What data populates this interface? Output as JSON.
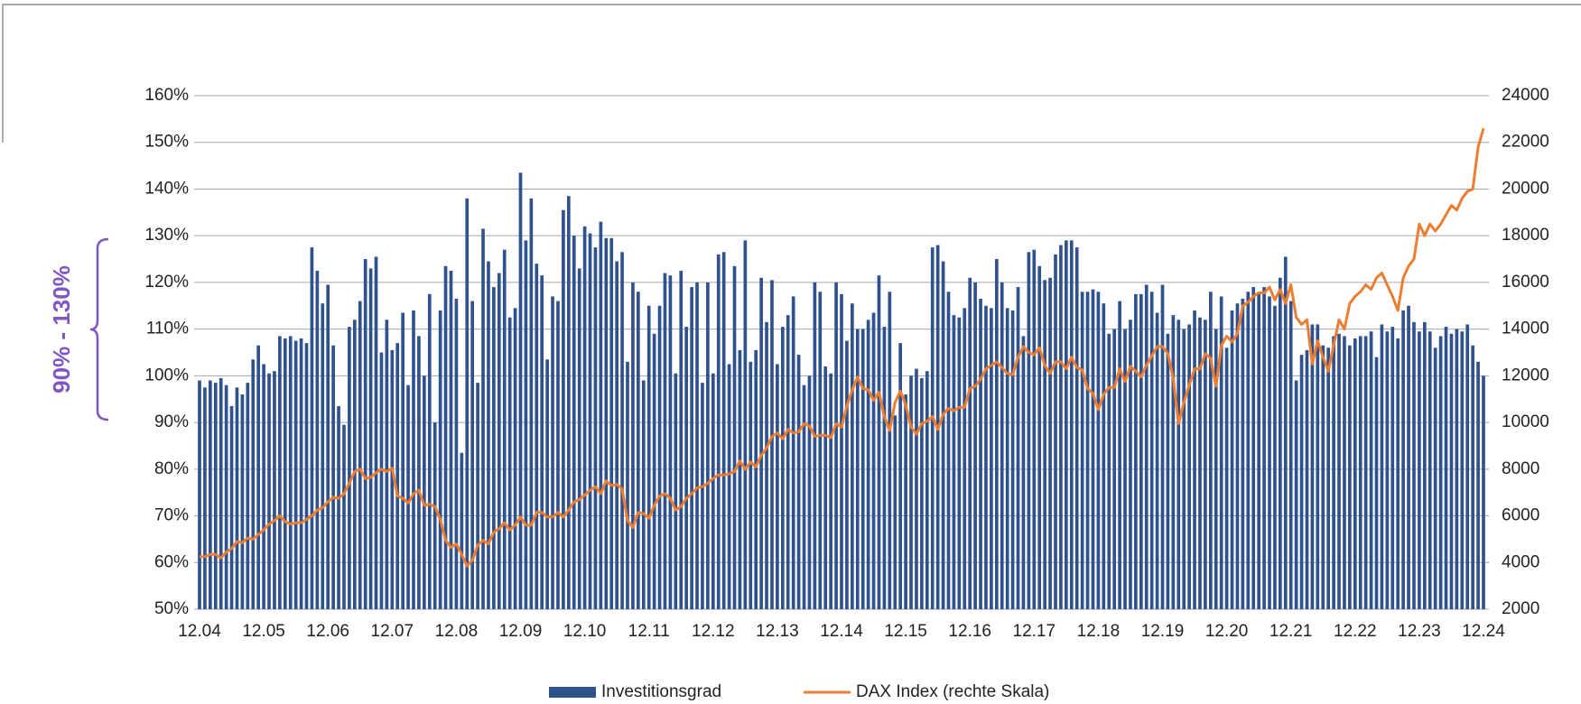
{
  "chart_data": {
    "type": "bar_line",
    "annotation": "90% - 130%",
    "categories": [
      "12.04",
      null,
      null,
      null,
      null,
      null,
      null,
      null,
      null,
      null,
      null,
      null,
      "12.05",
      null,
      null,
      null,
      null,
      null,
      null,
      null,
      null,
      null,
      null,
      null,
      "12.06",
      null,
      null,
      null,
      null,
      null,
      null,
      null,
      null,
      null,
      null,
      null,
      "12.07",
      null,
      null,
      null,
      null,
      null,
      null,
      null,
      null,
      null,
      null,
      null,
      "12.08",
      null,
      null,
      null,
      null,
      null,
      null,
      null,
      null,
      null,
      null,
      null,
      "12.09",
      null,
      null,
      null,
      null,
      null,
      null,
      null,
      null,
      null,
      null,
      null,
      "12.10",
      null,
      null,
      null,
      null,
      null,
      null,
      null,
      null,
      null,
      null,
      null,
      "12.11",
      null,
      null,
      null,
      null,
      null,
      null,
      null,
      null,
      null,
      null,
      null,
      "12.12",
      null,
      null,
      null,
      null,
      null,
      null,
      null,
      null,
      null,
      null,
      null,
      "12.13",
      null,
      null,
      null,
      null,
      null,
      null,
      null,
      null,
      null,
      null,
      null,
      "12.14",
      null,
      null,
      null,
      null,
      null,
      null,
      null,
      null,
      null,
      null,
      null,
      "12.15",
      null,
      null,
      null,
      null,
      null,
      null,
      null,
      null,
      null,
      null,
      null,
      "12.16",
      null,
      null,
      null,
      null,
      null,
      null,
      null,
      null,
      null,
      null,
      null,
      "12.17",
      null,
      null,
      null,
      null,
      null,
      null,
      null,
      null,
      null,
      null,
      null,
      "12.18",
      null,
      null,
      null,
      null,
      null,
      null,
      null,
      null,
      null,
      null,
      null,
      "12.19",
      null,
      null,
      null,
      null,
      null,
      null,
      null,
      null,
      null,
      null,
      null,
      "12.20",
      null,
      null,
      null,
      null,
      null,
      null,
      null,
      null,
      null,
      null,
      null,
      "12.21",
      null,
      null,
      null,
      null,
      null,
      null,
      null,
      null,
      null,
      null,
      null,
      "12.22",
      null,
      null,
      null,
      null,
      null,
      null,
      null,
      null,
      null,
      null,
      null,
      "12.23",
      null,
      null,
      null,
      null,
      null,
      null,
      null,
      null,
      null,
      null,
      null,
      "12.24"
    ],
    "series": [
      {
        "name": "Investitionsgrad",
        "type": "bar",
        "color": "#2f528f",
        "axis": "y",
        "values": [
          99,
          97.5,
          99,
          98.5,
          99.5,
          98,
          93.5,
          97.5,
          96,
          98.5,
          103.5,
          106.5,
          102.5,
          100.5,
          101,
          108.5,
          108,
          108.5,
          107.5,
          108,
          107,
          127.5,
          122.5,
          115.5,
          119.5,
          106.5,
          93.5,
          89.5,
          110.5,
          112,
          116,
          125,
          123,
          125.5,
          105,
          112,
          105.5,
          107,
          113.5,
          98,
          114,
          108.5,
          100,
          117.5,
          90,
          114,
          123.5,
          122.5,
          116.5,
          83.5,
          138,
          116,
          98.5,
          131.5,
          124.5,
          119,
          122,
          127,
          112.5,
          114.5,
          143.5,
          129,
          138,
          124,
          121.5,
          103.5,
          117,
          116,
          135.5,
          138.5,
          130,
          123,
          132,
          130.5,
          127.5,
          133,
          129.5,
          129.5,
          124.5,
          126.5,
          103,
          120,
          118,
          99,
          115,
          109,
          115,
          122,
          121.5,
          100.5,
          122.5,
          110.5,
          119,
          120,
          98.5,
          120,
          100.5,
          126,
          126.5,
          102.5,
          123.5,
          105.5,
          129,
          103,
          105.5,
          121,
          111.5,
          120.5,
          102.5,
          110.5,
          113,
          117,
          104.5,
          98,
          100,
          120,
          118,
          102,
          100.5,
          120,
          117.5,
          107.5,
          115.5,
          110,
          110,
          112,
          113.5,
          121.5,
          110.5,
          118,
          91.5,
          107,
          96,
          100,
          101.5,
          99.5,
          101,
          127.5,
          128,
          124.5,
          118,
          113,
          112.5,
          114.5,
          121,
          120,
          116.5,
          115,
          114.5,
          125,
          120,
          114.5,
          114,
          119,
          108.5,
          126.5,
          127,
          123.5,
          120.5,
          121,
          126,
          128,
          129,
          129,
          127.5,
          118,
          118,
          118.5,
          118,
          115.5,
          109,
          110,
          116,
          110,
          112,
          117.5,
          117.5,
          119.5,
          118,
          113.5,
          119.5,
          109,
          113,
          112,
          110,
          111,
          114,
          112.5,
          112,
          118,
          110,
          117,
          106,
          114,
          115.5,
          116.5,
          118,
          119,
          117.5,
          119,
          117,
          115,
          121,
          125.5,
          116,
          99,
          104.5,
          105.5,
          111,
          111,
          106.5,
          106,
          108.5,
          109,
          108.5,
          106.5,
          108,
          108.5,
          108.5,
          109.5,
          104,
          111,
          109.5,
          110.5,
          108,
          114,
          115,
          111.5,
          109.5,
          111.5,
          109.5,
          106,
          108.5,
          110.5,
          109,
          110,
          109.5,
          111,
          106.5,
          103,
          100
        ]
      },
      {
        "name": "DAX Index (rechte Skala)",
        "type": "line",
        "color": "#ed7d31",
        "axis": "y2",
        "values": [
          4250,
          4250,
          4350,
          4350,
          4200,
          4450,
          4600,
          4900,
          4850,
          5050,
          5000,
          5200,
          5400,
          5650,
          5800,
          6000,
          5750,
          5650,
          5700,
          5700,
          5850,
          6000,
          6250,
          6350,
          6600,
          6800,
          6750,
          6950,
          7400,
          7900,
          8000,
          7600,
          7650,
          7850,
          8000,
          7900,
          8050,
          6850,
          6750,
          6550,
          6950,
          7100,
          6450,
          6500,
          6400,
          5850,
          4950,
          4650,
          4800,
          4350,
          3850,
          4100,
          4750,
          4950,
          4800,
          5300,
          5450,
          5700,
          5400,
          5600,
          5950,
          5600,
          5600,
          6150,
          6150,
          5950,
          5950,
          6150,
          5950,
          6250,
          6600,
          6700,
          6900,
          7100,
          7250,
          6950,
          7500,
          7300,
          7350,
          7150,
          5800,
          5500,
          6150,
          6100,
          5900,
          6450,
          6850,
          6950,
          6750,
          6250,
          6400,
          6750,
          6950,
          7200,
          7250,
          7400,
          7600,
          7750,
          7750,
          7800,
          7900,
          8350,
          8000,
          8300,
          8100,
          8600,
          8900,
          9400,
          9550,
          9300,
          9700,
          9550,
          9600,
          9950,
          9850,
          9400,
          9450,
          9450,
          9350,
          9950,
          9800,
          10700,
          11400,
          11950,
          11450,
          11400,
          10950,
          11300,
          10250,
          9650,
          10850,
          11350,
          10750,
          9800,
          9500,
          9950,
          10050,
          10250,
          9700,
          10350,
          10600,
          10500,
          10650,
          10650,
          11450,
          11550,
          11850,
          12300,
          12450,
          12600,
          12350,
          12100,
          12050,
          12800,
          13250,
          13000,
          12900,
          13200,
          12450,
          12100,
          12600,
          12600,
          12300,
          12800,
          12350,
          12250,
          11450,
          11250,
          10550,
          11200,
          11500,
          11500,
          12300,
          11750,
          12400,
          12200,
          11950,
          12450,
          12850,
          13250,
          13250,
          12950,
          11900,
          9950,
          10850,
          11600,
          12300,
          12300,
          12950,
          12750,
          11550,
          13300,
          13700,
          13450,
          13800,
          15000,
          15150,
          15400,
          15550,
          15550,
          15800,
          15250,
          15700,
          15100,
          15900,
          14500,
          14200,
          14400,
          12500,
          13500,
          12800,
          12200,
          13300,
          14400,
          14000,
          15100,
          15400,
          15600,
          15900,
          15700,
          16200,
          16400,
          15900,
          15400,
          14800,
          16200,
          16700,
          17000,
          18500,
          18000,
          18500,
          18200,
          18500,
          18900,
          19300,
          19100,
          19600,
          19900,
          20000,
          21800,
          22600
        ]
      }
    ],
    "ylim": [
      50,
      160
    ],
    "yticks": [
      {
        "value": 50,
        "label": "50%"
      },
      {
        "value": 60,
        "label": "60%"
      },
      {
        "value": 70,
        "label": "70%"
      },
      {
        "value": 80,
        "label": "80%"
      },
      {
        "value": 90,
        "label": "90%"
      },
      {
        "value": 100,
        "label": "100%"
      },
      {
        "value": 110,
        "label": "110%"
      },
      {
        "value": 120,
        "label": "120%"
      },
      {
        "value": 130,
        "label": "130%"
      },
      {
        "value": 140,
        "label": "140%"
      },
      {
        "value": 150,
        "label": "150%"
      },
      {
        "value": 160,
        "label": "160%"
      }
    ],
    "y2lim": [
      2000,
      24000
    ],
    "y2ticks": [
      2000,
      4000,
      6000,
      8000,
      10000,
      12000,
      14000,
      16000,
      18000,
      20000,
      22000,
      24000
    ],
    "grid": true,
    "legend": "bottom"
  }
}
